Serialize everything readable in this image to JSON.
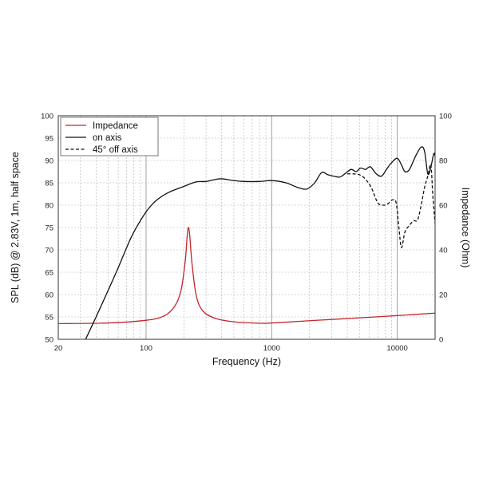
{
  "chart_data": {
    "type": "line",
    "xlabel": "Frequency (Hz)",
    "ylabel_left": "SPL (dB) @ 2.83V, 1m, half space",
    "ylabel_right": "Impedance (Ohm)",
    "x_scale": "log",
    "xlim": [
      20,
      20000
    ],
    "ylim_left": [
      50,
      100
    ],
    "ylim_right": [
      0,
      100
    ],
    "x_ticks": [
      {
        "value": 20,
        "label": "20"
      },
      {
        "value": 100,
        "label": "100"
      },
      {
        "value": 1000,
        "label": "1000"
      },
      {
        "value": 10000,
        "label": "10000"
      }
    ],
    "y_ticks_left": [
      50,
      55,
      60,
      65,
      70,
      75,
      80,
      85,
      90,
      95,
      100
    ],
    "y_ticks_right": [
      0,
      20,
      40,
      60,
      80,
      100
    ],
    "grid": true,
    "legend_position": "top-left",
    "series": [
      {
        "name": "Impedance",
        "axis": "right",
        "color": "#c0272d",
        "dash": "solid",
        "points": [
          [
            20,
            7
          ],
          [
            50,
            7.3
          ],
          [
            100,
            8.5
          ],
          [
            140,
            10.5
          ],
          [
            170,
            15
          ],
          [
            190,
            22
          ],
          [
            205,
            35
          ],
          [
            213,
            47
          ],
          [
            218,
            50
          ],
          [
            223,
            46
          ],
          [
            232,
            34
          ],
          [
            250,
            20
          ],
          [
            280,
            13
          ],
          [
            350,
            9.5
          ],
          [
            500,
            7.8
          ],
          [
            800,
            7.2
          ],
          [
            1000,
            7.3
          ],
          [
            2000,
            8.3
          ],
          [
            5000,
            9.6
          ],
          [
            10000,
            10.6
          ],
          [
            20000,
            11.7
          ]
        ]
      },
      {
        "name": "on axis",
        "axis": "left",
        "color": "#111111",
        "dash": "solid",
        "points": [
          [
            33,
            50
          ],
          [
            40,
            55
          ],
          [
            50,
            61
          ],
          [
            60,
            66
          ],
          [
            70,
            70.5
          ],
          [
            80,
            74
          ],
          [
            100,
            78.5
          ],
          [
            120,
            81
          ],
          [
            150,
            82.8
          ],
          [
            200,
            84.2
          ],
          [
            250,
            85.2
          ],
          [
            300,
            85.3
          ],
          [
            350,
            85.7
          ],
          [
            400,
            85.9
          ],
          [
            500,
            85.5
          ],
          [
            600,
            85.3
          ],
          [
            800,
            85.3
          ],
          [
            1000,
            85.5
          ],
          [
            1300,
            85
          ],
          [
            1600,
            84
          ],
          [
            1900,
            83.6
          ],
          [
            2200,
            85
          ],
          [
            2500,
            87.3
          ],
          [
            2800,
            86.8
          ],
          [
            3100,
            86.5
          ],
          [
            3500,
            86.3
          ],
          [
            3900,
            87.2
          ],
          [
            4300,
            88
          ],
          [
            4700,
            87.5
          ],
          [
            5100,
            88.3
          ],
          [
            5600,
            88
          ],
          [
            6100,
            88.6
          ],
          [
            6800,
            87
          ],
          [
            7500,
            86.5
          ],
          [
            8200,
            88
          ],
          [
            9000,
            89.5
          ],
          [
            10000,
            90.5
          ],
          [
            10800,
            89
          ],
          [
            11500,
            87.5
          ],
          [
            12500,
            88
          ],
          [
            14000,
            91
          ],
          [
            15500,
            93
          ],
          [
            16500,
            92
          ],
          [
            17500,
            87
          ],
          [
            18500,
            88.5
          ],
          [
            19500,
            91.5
          ],
          [
            20000,
            91
          ]
        ]
      },
      {
        "name": "45° off axis",
        "axis": "left",
        "color": "#111111",
        "dash": "dashed",
        "points": [
          [
            4000,
            87
          ],
          [
            4500,
            87
          ],
          [
            5000,
            86.8
          ],
          [
            5500,
            86
          ],
          [
            6200,
            84
          ],
          [
            7000,
            80.5
          ],
          [
            7800,
            80
          ],
          [
            8500,
            80.4
          ],
          [
            9200,
            81.2
          ],
          [
            9800,
            80.5
          ],
          [
            10300,
            75
          ],
          [
            10800,
            70.5
          ],
          [
            11500,
            74
          ],
          [
            12500,
            75.5
          ],
          [
            13500,
            76.5
          ],
          [
            14500,
            76.7
          ],
          [
            15500,
            80
          ],
          [
            16500,
            84
          ],
          [
            17500,
            86.5
          ],
          [
            18500,
            89
          ],
          [
            19200,
            82
          ],
          [
            20000,
            76
          ]
        ]
      }
    ]
  }
}
